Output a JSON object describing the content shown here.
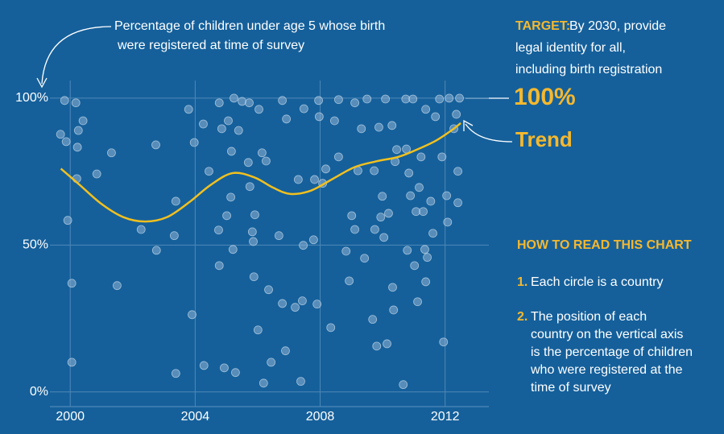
{
  "chart_data": {
    "type": "scatter",
    "title_lines": [
      "Percentage of children under age 5 whose birth",
      "were registered at time of survey"
    ],
    "xlim": [
      1999.35,
      2013.4
    ],
    "ylim": [
      -5,
      106
    ],
    "xticks": [
      2000,
      2004,
      2008,
      2012
    ],
    "yticks": [
      {
        "value": 0,
        "label": "0%"
      },
      {
        "value": 50,
        "label": "50%"
      },
      {
        "value": 100,
        "label": "100%"
      }
    ],
    "grid": true,
    "series": [
      {
        "color": "#8fb3d3",
        "x": [
          1999.69,
          1999.87,
          2000.23,
          2000.26,
          1999.82,
          2000.18,
          2000.41,
          1999.92,
          2000.05,
          2000.05,
          2000.21,
          2000.85,
          2001.32,
          2001.5,
          2002.27,
          2002.74,
          2002.76,
          2003.33,
          2003.38,
          2003.38,
          2003.79,
          2003.9,
          2003.97,
          2004.26,
          2004.28,
          2004.44,
          2004.77,
          2004.75,
          2004.77,
          2004.85,
          2005.01,
          2004.93,
          2005.06,
          2005.16,
          2005.21,
          2005.29,
          2005.14,
          2005.24,
          2005.39,
          2005.5,
          2005.73,
          2005.7,
          2005.75,
          2005.83,
          2005.86,
          2005.88,
          2005.91,
          2006.01,
          2006.04,
          2006.14,
          2006.19,
          2006.27,
          2006.35,
          2006.43,
          2006.68,
          2006.79,
          2006.89,
          2006.92,
          2006.79,
          2007.2,
          2007.3,
          2007.46,
          2007.43,
          2007.38,
          2007.48,
          2007.82,
          2007.79,
          2007.9,
          2007.95,
          2007.97,
          2008.08,
          2008.18,
          2008.34,
          2008.46,
          2008.59,
          2008.59,
          2008.83,
          2008.93,
          2009.01,
          2009.11,
          2009.11,
          2009.21,
          2009.32,
          2009.42,
          2009.5,
          2009.68,
          2009.73,
          2009.75,
          2009.81,
          2009.88,
          2009.94,
          2009.99,
          2010.04,
          2010.09,
          2010.14,
          2010.19,
          2010.3,
          2010.32,
          2010.35,
          2010.4,
          2010.45,
          2010.66,
          2010.74,
          2010.76,
          2010.79,
          2010.84,
          2010.89,
          2010.97,
          2011.02,
          2011.07,
          2011.12,
          2011.17,
          2011.23,
          2011.3,
          2011.35,
          2011.38,
          2011.38,
          2011.43,
          2011.54,
          2011.61,
          2011.69,
          2011.82,
          2011.9,
          2011.95,
          2012.05,
          2012.08,
          2012.13,
          2012.28,
          2012.36,
          2012.41,
          2012.41,
          2012.46
        ],
        "values": [
          87.7,
          85.2,
          83.3,
          89.0,
          99.2,
          98.4,
          92.3,
          58.4,
          10.1,
          37.0,
          72.6,
          74.2,
          81.4,
          36.2,
          55.3,
          84.1,
          48.2,
          53.2,
          64.9,
          6.3,
          96.2,
          26.3,
          84.9,
          91.2,
          9.0,
          75.1,
          98.4,
          55.1,
          43.0,
          89.6,
          60.0,
          8.2,
          92.3,
          81.9,
          48.5,
          6.6,
          66.3,
          100,
          89.0,
          98.9,
          98.4,
          78.1,
          69.9,
          54.5,
          51.2,
          39.2,
          60.3,
          21.1,
          96.2,
          81.4,
          3.0,
          78.6,
          34.8,
          10.1,
          53.2,
          30.1,
          14.0,
          92.9,
          99.2,
          28.8,
          72.3,
          49.9,
          31.0,
          3.6,
          96.4,
          72.3,
          51.8,
          29.9,
          99.2,
          93.7,
          71.0,
          75.9,
          21.9,
          92.3,
          80.0,
          99.5,
          47.9,
          37.8,
          60.0,
          55.3,
          98.4,
          75.3,
          89.6,
          45.5,
          99.7,
          24.7,
          75.3,
          55.3,
          15.6,
          90.1,
          59.5,
          66.6,
          52.6,
          99.7,
          16.4,
          60.8,
          90.7,
          35.6,
          27.9,
          78.4,
          82.5,
          2.5,
          99.7,
          82.7,
          48.2,
          74.5,
          66.8,
          99.7,
          43.0,
          61.4,
          30.7,
          69.6,
          80.0,
          61.4,
          48.5,
          37.5,
          96.2,
          45.8,
          64.9,
          54.0,
          93.7,
          99.7,
          80.0,
          17.0,
          66.8,
          57.8,
          100,
          89.6,
          94.5,
          75.1,
          64.4,
          100
        ]
      },
      {
        "name": "Trend",
        "type": "line",
        "color": "#f2c01e",
        "x": [
          1999.7,
          2000.3,
          2001.0,
          2001.7,
          2002.4,
          2003.1,
          2003.8,
          2004.5,
          2005.2,
          2005.9,
          2006.5,
          2007.05,
          2007.7,
          2008.4,
          2009.1,
          2009.8,
          2010.5,
          2011.1,
          2011.7,
          2012.2,
          2012.5
        ],
        "values": [
          76,
          70.5,
          64,
          59.5,
          58,
          59.5,
          64.5,
          70.5,
          74.5,
          73,
          69.5,
          67.4,
          68.5,
          72.5,
          76.5,
          78.5,
          80,
          82.5,
          85.5,
          89,
          91.5
        ]
      }
    ],
    "target": {
      "heading": "TARGET:",
      "lines": [
        "By 2030, provide",
        "legal identity for all,",
        "including birth registration"
      ],
      "value_label": "100%"
    },
    "how_to_read": {
      "heading": "HOW TO READ THIS CHART",
      "items": [
        {
          "number": "1.",
          "lines": [
            "Each circle is a country"
          ]
        },
        {
          "number": "2.",
          "lines": [
            "The position of each",
            "country on the vertical axis",
            "is the percentage of children",
            "who were registered at the",
            "time of survey"
          ]
        }
      ]
    }
  }
}
